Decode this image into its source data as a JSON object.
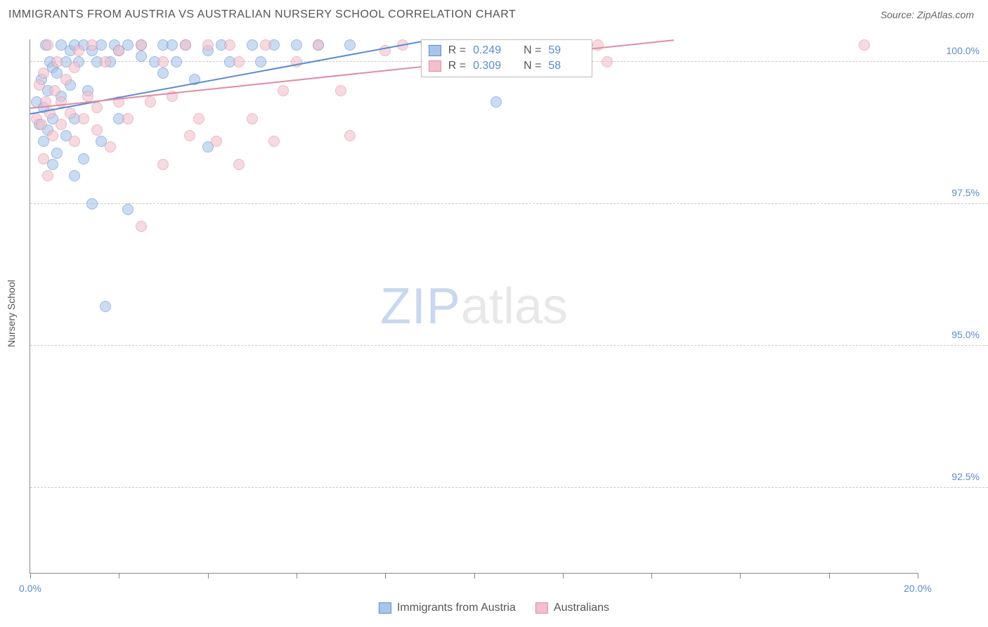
{
  "title": "IMMIGRANTS FROM AUSTRIA VS AUSTRALIAN NURSERY SCHOOL CORRELATION CHART",
  "source": "Source: ZipAtlas.com",
  "ylabel": "Nursery School",
  "watermark": {
    "zip": "ZIP",
    "atlas": "atlas"
  },
  "chart": {
    "type": "scatter",
    "xlim": [
      0.0,
      20.0
    ],
    "ylim": [
      91.0,
      100.4
    ],
    "xticks": [
      0.0,
      2.0,
      4.0,
      6.0,
      8.0,
      10.0,
      12.0,
      14.0,
      16.0,
      18.0,
      20.0
    ],
    "xtick_labels": {
      "0": "0.0%",
      "20": "20.0%"
    },
    "yticks": [
      92.5,
      95.0,
      97.5,
      100.0
    ],
    "ytick_labels": [
      "92.5%",
      "95.0%",
      "97.5%",
      "100.0%"
    ],
    "grid_color": "#cccccc",
    "axis_color": "#888888",
    "point_radius": 8,
    "series": [
      {
        "name": "Immigrants from Austria",
        "color_fill": "#a9c5ea",
        "color_stroke": "#5b8bd4",
        "r_value": "0.249",
        "n_value": "59",
        "trend": {
          "x1": 0.0,
          "y1": 99.1,
          "x2": 9.0,
          "y2": 100.4
        },
        "points": [
          [
            0.15,
            99.3
          ],
          [
            0.2,
            98.9
          ],
          [
            0.25,
            99.7
          ],
          [
            0.3,
            99.2
          ],
          [
            0.3,
            98.6
          ],
          [
            0.35,
            100.3
          ],
          [
            0.4,
            99.5
          ],
          [
            0.4,
            98.8
          ],
          [
            0.45,
            100.0
          ],
          [
            0.5,
            99.9
          ],
          [
            0.5,
            99.0
          ],
          [
            0.5,
            98.2
          ],
          [
            0.6,
            98.4
          ],
          [
            0.6,
            99.8
          ],
          [
            0.7,
            100.3
          ],
          [
            0.7,
            99.4
          ],
          [
            0.8,
            100.0
          ],
          [
            0.8,
            98.7
          ],
          [
            0.9,
            100.2
          ],
          [
            0.9,
            99.6
          ],
          [
            1.0,
            100.3
          ],
          [
            1.0,
            99.0
          ],
          [
            1.0,
            98.0
          ],
          [
            1.1,
            100.0
          ],
          [
            1.2,
            98.3
          ],
          [
            1.2,
            100.3
          ],
          [
            1.3,
            99.5
          ],
          [
            1.4,
            100.2
          ],
          [
            1.4,
            97.5
          ],
          [
            1.5,
            100.0
          ],
          [
            1.6,
            100.3
          ],
          [
            1.6,
            98.6
          ],
          [
            1.7,
            95.7
          ],
          [
            1.8,
            100.0
          ],
          [
            1.9,
            100.3
          ],
          [
            2.0,
            100.2
          ],
          [
            2.0,
            99.0
          ],
          [
            2.2,
            100.3
          ],
          [
            2.2,
            97.4
          ],
          [
            2.5,
            100.1
          ],
          [
            2.5,
            100.3
          ],
          [
            2.8,
            100.0
          ],
          [
            3.0,
            100.3
          ],
          [
            3.0,
            99.8
          ],
          [
            3.2,
            100.3
          ],
          [
            3.3,
            100.0
          ],
          [
            3.5,
            100.3
          ],
          [
            3.7,
            99.7
          ],
          [
            4.0,
            100.2
          ],
          [
            4.0,
            98.5
          ],
          [
            4.3,
            100.3
          ],
          [
            4.5,
            100.0
          ],
          [
            5.0,
            100.3
          ],
          [
            5.2,
            100.0
          ],
          [
            5.5,
            100.3
          ],
          [
            6.0,
            100.3
          ],
          [
            6.5,
            100.3
          ],
          [
            7.2,
            100.3
          ],
          [
            10.5,
            99.3
          ]
        ]
      },
      {
        "name": "Australians",
        "color_fill": "#f2c0cd",
        "color_stroke": "#e08ca3",
        "r_value": "0.309",
        "n_value": "58",
        "trend": {
          "x1": 0.0,
          "y1": 99.2,
          "x2": 14.5,
          "y2": 100.4
        },
        "points": [
          [
            0.15,
            99.0
          ],
          [
            0.2,
            99.6
          ],
          [
            0.25,
            98.9
          ],
          [
            0.3,
            98.3
          ],
          [
            0.3,
            99.8
          ],
          [
            0.35,
            99.3
          ],
          [
            0.4,
            98.0
          ],
          [
            0.4,
            100.3
          ],
          [
            0.45,
            99.1
          ],
          [
            0.5,
            98.7
          ],
          [
            0.55,
            99.5
          ],
          [
            0.6,
            100.0
          ],
          [
            0.7,
            99.3
          ],
          [
            0.7,
            98.9
          ],
          [
            0.8,
            99.7
          ],
          [
            0.9,
            99.1
          ],
          [
            1.0,
            99.9
          ],
          [
            1.0,
            98.6
          ],
          [
            1.1,
            100.2
          ],
          [
            1.2,
            99.0
          ],
          [
            1.3,
            99.4
          ],
          [
            1.4,
            100.3
          ],
          [
            1.5,
            99.2
          ],
          [
            1.5,
            98.8
          ],
          [
            1.7,
            100.0
          ],
          [
            1.8,
            98.5
          ],
          [
            2.0,
            100.2
          ],
          [
            2.0,
            99.3
          ],
          [
            2.2,
            99.0
          ],
          [
            2.5,
            100.3
          ],
          [
            2.5,
            97.1
          ],
          [
            2.7,
            99.3
          ],
          [
            3.0,
            98.2
          ],
          [
            3.0,
            100.0
          ],
          [
            3.2,
            99.4
          ],
          [
            3.5,
            100.3
          ],
          [
            3.6,
            98.7
          ],
          [
            3.8,
            99.0
          ],
          [
            4.0,
            100.3
          ],
          [
            4.2,
            98.6
          ],
          [
            4.5,
            100.3
          ],
          [
            4.7,
            100.0
          ],
          [
            4.7,
            98.2
          ],
          [
            5.0,
            99.0
          ],
          [
            5.3,
            100.3
          ],
          [
            5.5,
            98.6
          ],
          [
            5.7,
            99.5
          ],
          [
            6.0,
            100.0
          ],
          [
            6.5,
            100.3
          ],
          [
            7.0,
            99.5
          ],
          [
            7.2,
            98.7
          ],
          [
            8.0,
            100.2
          ],
          [
            8.4,
            100.3
          ],
          [
            10.5,
            100.3
          ],
          [
            12.0,
            100.3
          ],
          [
            12.8,
            100.3
          ],
          [
            13.0,
            100.0
          ],
          [
            18.8,
            100.3
          ]
        ]
      }
    ]
  },
  "legend": {
    "series1": "Immigrants from Austria",
    "series2": "Australians"
  }
}
